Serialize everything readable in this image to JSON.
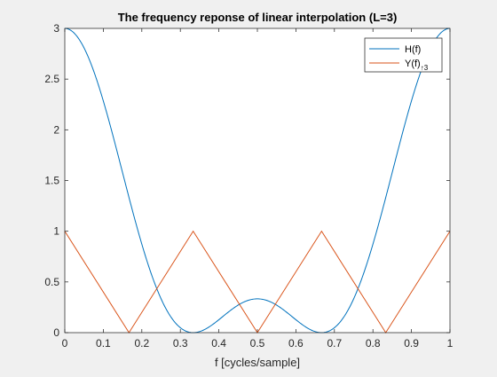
{
  "chart_data": {
    "type": "line",
    "title": "The frequency reponse of linear interpolation (L=3)",
    "xlabel": "f [cycles/sample]",
    "ylabel": "",
    "xlim": [
      0,
      1
    ],
    "ylim": [
      0,
      3
    ],
    "xticks": [
      0,
      0.1,
      0.2,
      0.3,
      0.4,
      0.5,
      0.6,
      0.7,
      0.8,
      0.9,
      1
    ],
    "xtick_labels": [
      "0",
      "0.1",
      "0.2",
      "0.3",
      "0.4",
      "0.5",
      "0.6",
      "0.7",
      "0.8",
      "0.9",
      "1"
    ],
    "yticks": [
      0,
      0.5,
      1,
      1.5,
      2,
      2.5,
      3
    ],
    "ytick_labels": [
      "0",
      "0.5",
      "1",
      "1.5",
      "2",
      "2.5",
      "3"
    ],
    "grid": false,
    "legend_position": "top-right",
    "series": [
      {
        "name": "H(f)",
        "color": "#0072BD",
        "x": [
          0,
          0.05,
          0.1,
          0.15,
          0.2,
          0.25,
          0.3,
          0.3333,
          0.35,
          0.4,
          0.45,
          0.5,
          0.55,
          0.6,
          0.6667,
          0.7,
          0.75,
          0.8,
          0.85,
          0.9,
          0.95,
          1
        ],
        "y": [
          3,
          2.81,
          2.29,
          1.6,
          0.92,
          0.38,
          0.05,
          0,
          0.02,
          0.13,
          0.27,
          0.333,
          0.27,
          0.13,
          0,
          0.05,
          0.38,
          0.92,
          1.6,
          2.29,
          2.81,
          3
        ]
      },
      {
        "name": "Y(f)",
        "name_subscript": "↑3",
        "color": "#D95319",
        "x": [
          0,
          0.1667,
          0.3333,
          0.5,
          0.6667,
          0.8333,
          1
        ],
        "y": [
          1,
          0,
          1,
          0,
          1,
          0,
          1
        ]
      }
    ]
  }
}
